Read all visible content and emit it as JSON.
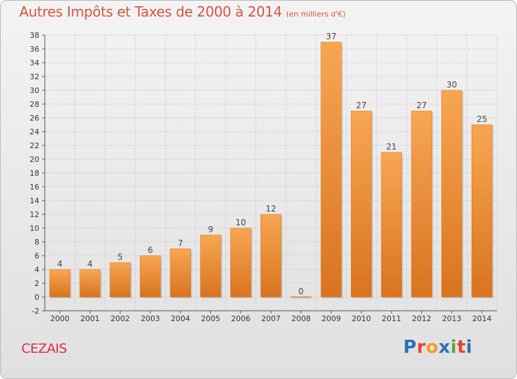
{
  "header": {
    "title": "Autres Impôts et Taxes de 2000 à 2014",
    "subtitle": "(en milliers d'€)"
  },
  "footer": {
    "commune": "CEZAIS",
    "logo_text": "Proxiti",
    "logo_colors": [
      "#2c6fb7",
      "#e8402f",
      "#f0a020",
      "#2c6fb7",
      "#5aa832",
      "#e8402f",
      "#2c6fb7"
    ]
  },
  "colors": {
    "bar_light": "#f7a652",
    "bar_dark": "#d9731f",
    "title": "#d4553f",
    "commune": "#d4304a"
  },
  "chart_data": {
    "type": "bar",
    "title": "Autres Impôts et Taxes de 2000 à 2014",
    "subtitle": "(en milliers d'€)",
    "categories": [
      "2000",
      "2001",
      "2002",
      "2003",
      "2004",
      "2005",
      "2006",
      "2007",
      "2008",
      "2009",
      "2010",
      "2011",
      "2012",
      "2013",
      "2014"
    ],
    "values": [
      4,
      4,
      5,
      6,
      7,
      9,
      10,
      12,
      0,
      37,
      27,
      21,
      27,
      30,
      25
    ],
    "ylim": [
      -2,
      38
    ],
    "yticks": [
      -2,
      0,
      2,
      4,
      6,
      8,
      10,
      12,
      14,
      16,
      18,
      20,
      22,
      24,
      26,
      28,
      30,
      32,
      34,
      36,
      38
    ],
    "grid": true,
    "legend": "none",
    "xlabel": "",
    "ylabel": ""
  }
}
